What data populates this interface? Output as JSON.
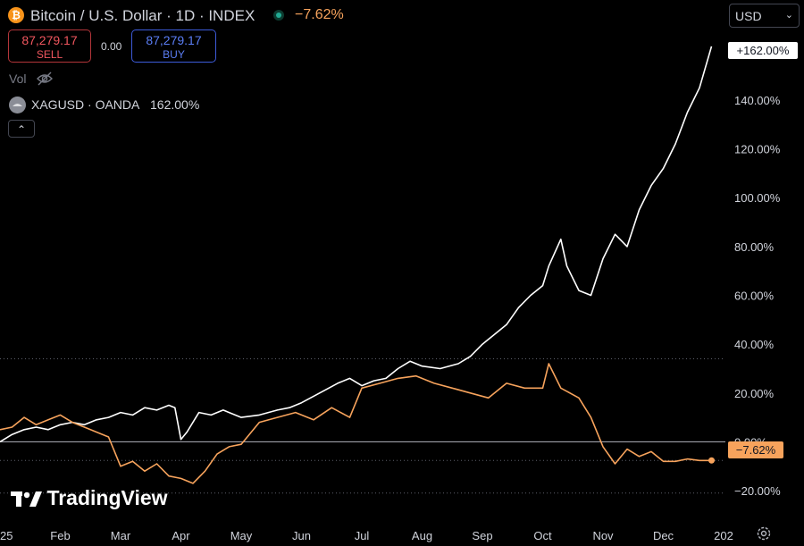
{
  "header": {
    "title": "Bitcoin / U.S. Dollar · 1D · INDEX",
    "icon": "bitcoin-icon",
    "change": "−7.62%",
    "sell_price": "87,279.17",
    "sell_label": "SELL",
    "spread": "0.00",
    "buy_price": "87,279.17",
    "buy_label": "BUY",
    "vol_label": "Vol",
    "compare_symbol": "XAGUSD · OANDA",
    "compare_value": "162.00%",
    "currency": "USD",
    "collapse_glyph": "⌃"
  },
  "badges": {
    "top": "+162.00%",
    "bottom": "−7.62%"
  },
  "brand": "TradingView",
  "colors": {
    "background": "#000000",
    "xagusd": "#ffffff",
    "btcusd": "#f7a35c",
    "text": "#d1d4dc"
  },
  "chart_data": {
    "type": "line",
    "y_axis_ticks": [
      "140.00%",
      "120.00%",
      "100.00%",
      "80.00%",
      "60.00%",
      "40.00%",
      "20.00%",
      "0.00%",
      "−20.00%"
    ],
    "y_tick_values": [
      140,
      120,
      100,
      80,
      60,
      40,
      20,
      0,
      -20
    ],
    "x_axis_labels": [
      "25",
      "Feb",
      "Mar",
      "Apr",
      "May",
      "Jun",
      "Jul",
      "Aug",
      "Sep",
      "Oct",
      "Nov",
      "Dec",
      "202"
    ],
    "x_label_positions": [
      0,
      1,
      2,
      3,
      4,
      5,
      6,
      7,
      8,
      9,
      10,
      11,
      12
    ],
    "ylim": [
      -24,
      170
    ],
    "xlim": [
      0,
      12
    ],
    "reference_lines": [
      {
        "value": 34,
        "style": "dotted"
      },
      {
        "value": 0,
        "style": "solid"
      },
      {
        "value": -7.62,
        "style": "dotted"
      },
      {
        "value": -21,
        "style": "dotted"
      }
    ],
    "series": [
      {
        "name": "XAGUSD · OANDA",
        "color": "#ffffff",
        "x": [
          0,
          0.2,
          0.4,
          0.6,
          0.8,
          1,
          1.2,
          1.4,
          1.6,
          1.8,
          2,
          2.2,
          2.4,
          2.6,
          2.8,
          2.9,
          3,
          3.1,
          3.3,
          3.5,
          3.7,
          4,
          4.3,
          4.6,
          4.8,
          5,
          5.3,
          5.6,
          5.8,
          6,
          6.2,
          6.4,
          6.6,
          6.8,
          7,
          7.3,
          7.6,
          7.8,
          8,
          8.2,
          8.4,
          8.6,
          8.8,
          9,
          9.1,
          9.3,
          9.4,
          9.6,
          9.8,
          10,
          10.2,
          10.4,
          10.6,
          10.8,
          11,
          11.2,
          11.4,
          11.6,
          11.8
        ],
        "y": [
          0,
          3,
          5,
          6,
          5,
          7,
          8,
          7,
          9,
          10,
          12,
          11,
          14,
          13,
          15,
          14,
          1,
          4,
          12,
          11,
          13,
          10,
          11,
          13,
          14,
          16,
          20,
          24,
          26,
          23,
          25,
          26,
          30,
          33,
          31,
          30,
          32,
          35,
          40,
          44,
          48,
          55,
          60,
          64,
          72,
          83,
          72,
          62,
          60,
          75,
          85,
          80,
          95,
          105,
          112,
          122,
          135,
          145,
          162
        ]
      },
      {
        "name": "Bitcoin / U.S. Dollar",
        "color": "#f7a35c",
        "x": [
          0,
          0.2,
          0.4,
          0.6,
          0.8,
          1,
          1.2,
          1.4,
          1.6,
          1.8,
          2,
          2.2,
          2.4,
          2.6,
          2.8,
          3,
          3.2,
          3.4,
          3.6,
          3.8,
          4,
          4.3,
          4.6,
          4.9,
          5.2,
          5.5,
          5.8,
          6,
          6.3,
          6.6,
          6.9,
          7.2,
          7.5,
          7.8,
          8.1,
          8.4,
          8.7,
          9,
          9.1,
          9.3,
          9.6,
          9.8,
          10,
          10.2,
          10.4,
          10.6,
          10.8,
          11,
          11.2,
          11.4,
          11.6,
          11.8
        ],
        "y": [
          5,
          6,
          10,
          7,
          9,
          11,
          8,
          6,
          4,
          2,
          -10,
          -8,
          -12,
          -9,
          -14,
          -15,
          -17,
          -12,
          -5,
          -2,
          -1,
          8,
          10,
          12,
          9,
          14,
          10,
          22,
          24,
          26,
          27,
          24,
          22,
          20,
          18,
          24,
          22,
          22,
          32,
          22,
          18,
          10,
          -2,
          -9,
          -3,
          -6,
          -4,
          -8,
          -8,
          -7,
          -7.62,
          -7.62
        ]
      }
    ]
  }
}
